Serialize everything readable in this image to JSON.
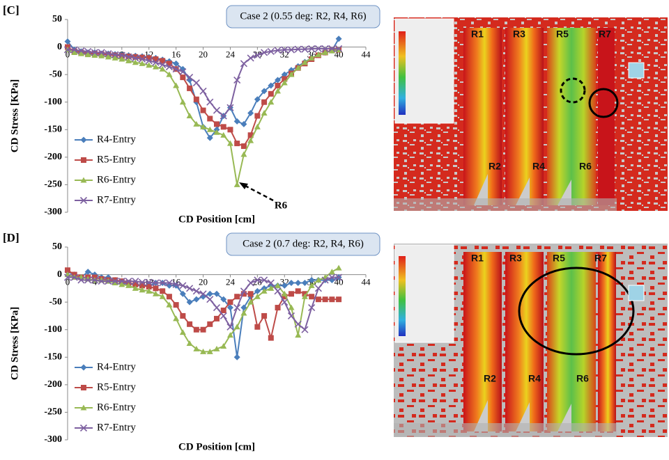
{
  "chart_data": [
    {
      "type": "line",
      "panel_label": "[C]",
      "title": "Case 2 (0.55 deg: R2, R4, R6)",
      "xlabel": "CD Position [cm]",
      "ylabel": "CD Stress [KPa]",
      "xlim": [
        0,
        44
      ],
      "ylim": [
        -300,
        50
      ],
      "xticks": [
        0,
        4,
        8,
        12,
        16,
        20,
        24,
        28,
        32,
        36,
        40,
        44
      ],
      "yticks": [
        -300,
        -250,
        -200,
        -150,
        -100,
        -50,
        0,
        50
      ],
      "legend": "lower left",
      "x": [
        0,
        1,
        2,
        3,
        4,
        5,
        6,
        7,
        8,
        9,
        10,
        11,
        12,
        13,
        14,
        15,
        16,
        17,
        18,
        19,
        20,
        21,
        22,
        23,
        24,
        25,
        26,
        27,
        28,
        29,
        30,
        31,
        32,
        33,
        34,
        35,
        36,
        37,
        38,
        39,
        40
      ],
      "series": [
        {
          "name": "R4-Entry",
          "color": "#4a7ebb",
          "marker": "diamond",
          "values": [
            10,
            -5,
            -8,
            -10,
            -10,
            -12,
            -12,
            -13,
            -14,
            -15,
            -16,
            -17,
            -18,
            -20,
            -23,
            -26,
            -30,
            -40,
            -60,
            -100,
            -145,
            -165,
            -150,
            -125,
            -110,
            -135,
            -140,
            -120,
            -95,
            -80,
            -70,
            -60,
            -50,
            -42,
            -35,
            -27,
            -20,
            -14,
            -10,
            -6,
            15
          ]
        },
        {
          "name": "R5-Entry",
          "color": "#be4b48",
          "marker": "square",
          "values": [
            0,
            -8,
            -10,
            -12,
            -12,
            -13,
            -14,
            -15,
            -16,
            -17,
            -18,
            -19,
            -20,
            -22,
            -25,
            -30,
            -40,
            -55,
            -75,
            -95,
            -115,
            -130,
            -140,
            -145,
            -150,
            -175,
            -180,
            -160,
            -125,
            -100,
            -85,
            -70,
            -58,
            -48,
            -38,
            -30,
            -22,
            -15,
            -10,
            -6,
            -5
          ]
        },
        {
          "name": "R6-Entry",
          "color": "#98b954",
          "marker": "triangle",
          "values": [
            -5,
            -10,
            -12,
            -14,
            -15,
            -16,
            -18,
            -20,
            -22,
            -25,
            -28,
            -30,
            -33,
            -36,
            -40,
            -50,
            -70,
            -100,
            -125,
            -140,
            -145,
            -150,
            -155,
            -160,
            -175,
            -250,
            -195,
            -170,
            -145,
            -120,
            -100,
            -80,
            -65,
            -50,
            -38,
            -28,
            -20,
            -14,
            -10,
            -7,
            -5
          ]
        },
        {
          "name": "R7-Entry",
          "color": "#7d60a0",
          "marker": "x",
          "values": [
            -5,
            -5,
            -7,
            -8,
            -10,
            -10,
            -12,
            -14,
            -15,
            -18,
            -20,
            -22,
            -25,
            -28,
            -32,
            -36,
            -40,
            -45,
            -55,
            -65,
            -80,
            -100,
            -115,
            -125,
            -110,
            -60,
            -30,
            -20,
            -15,
            -10,
            -8,
            -6,
            -5,
            -5,
            -4,
            -4,
            -3,
            -3,
            -3,
            -3,
            -3
          ]
        }
      ],
      "annotations": [
        {
          "text": "R6"
        }
      ]
    },
    {
      "type": "line",
      "panel_label": "[D]",
      "title": "Case 2 (0.7 deg: R2, R4, R6)",
      "xlabel": "CD Position [cm]",
      "ylabel": "CD Stress [KPa]",
      "xlim": [
        0,
        44
      ],
      "ylim": [
        -300,
        50
      ],
      "xticks": [
        0,
        4,
        8,
        12,
        16,
        20,
        24,
        28,
        32,
        36,
        40,
        44
      ],
      "yticks": [
        -300,
        -250,
        -200,
        -150,
        -100,
        -50,
        0,
        50
      ],
      "legend": "lower left",
      "x": [
        0,
        1,
        2,
        3,
        4,
        5,
        6,
        7,
        8,
        9,
        10,
        11,
        12,
        13,
        14,
        15,
        16,
        17,
        18,
        19,
        20,
        21,
        22,
        23,
        24,
        25,
        26,
        27,
        28,
        29,
        30,
        31,
        32,
        33,
        34,
        35,
        36,
        37,
        38,
        39,
        40
      ],
      "series": [
        {
          "name": "R4-Entry",
          "color": "#4a7ebb",
          "marker": "diamond",
          "values": [
            5,
            0,
            -5,
            5,
            0,
            -5,
            -5,
            -10,
            -15,
            -15,
            -20,
            -20,
            -20,
            -15,
            -15,
            -20,
            -20,
            -35,
            -50,
            -45,
            -40,
            -35,
            -35,
            -45,
            -60,
            -150,
            -60,
            -40,
            -30,
            -25,
            -20,
            -20,
            -20,
            -15,
            -15,
            -15,
            -10,
            -10,
            -10,
            -10,
            -5
          ]
        },
        {
          "name": "R5-Entry",
          "color": "#be4b48",
          "marker": "square",
          "values": [
            8,
            0,
            -5,
            -5,
            -5,
            -8,
            -10,
            -10,
            -12,
            -15,
            -18,
            -20,
            -22,
            -25,
            -30,
            -40,
            -55,
            -75,
            -90,
            -100,
            -100,
            -90,
            -80,
            -65,
            -50,
            -40,
            -35,
            -35,
            -95,
            -75,
            -115,
            -60,
            -40,
            -35,
            -30,
            -35,
            -40,
            -45,
            -45,
            -45,
            -45
          ]
        },
        {
          "name": "R6-Entry",
          "color": "#98b954",
          "marker": "triangle",
          "values": [
            0,
            -5,
            -5,
            -8,
            -10,
            -10,
            -12,
            -15,
            -18,
            -20,
            -25,
            -28,
            -30,
            -35,
            -40,
            -55,
            -80,
            -105,
            -125,
            -135,
            -140,
            -140,
            -135,
            -130,
            -110,
            -95,
            -70,
            -50,
            -40,
            -30,
            -25,
            -20,
            -35,
            -60,
            -110,
            -40,
            -20,
            -10,
            -5,
            5,
            12
          ]
        },
        {
          "name": "R7-Entry",
          "color": "#7d60a0",
          "marker": "x",
          "values": [
            -5,
            -5,
            -10,
            -10,
            -10,
            -12,
            -12,
            -12,
            -12,
            -12,
            -12,
            -14,
            -14,
            -15,
            -15,
            -15,
            -18,
            -20,
            -25,
            -30,
            -35,
            -45,
            -60,
            -75,
            -95,
            -60,
            -30,
            -15,
            -10,
            -10,
            -15,
            -30,
            -50,
            -75,
            -90,
            -100,
            -60,
            -25,
            -10,
            -5,
            -5
          ]
        }
      ]
    }
  ],
  "images": [
    {
      "labels": [
        "R1",
        "R3",
        "R5",
        "R7",
        "R2",
        "R4",
        "R6"
      ]
    },
    {
      "labels": [
        "R1",
        "R3",
        "R5",
        "R7",
        "R2",
        "R4",
        "R6"
      ]
    }
  ]
}
